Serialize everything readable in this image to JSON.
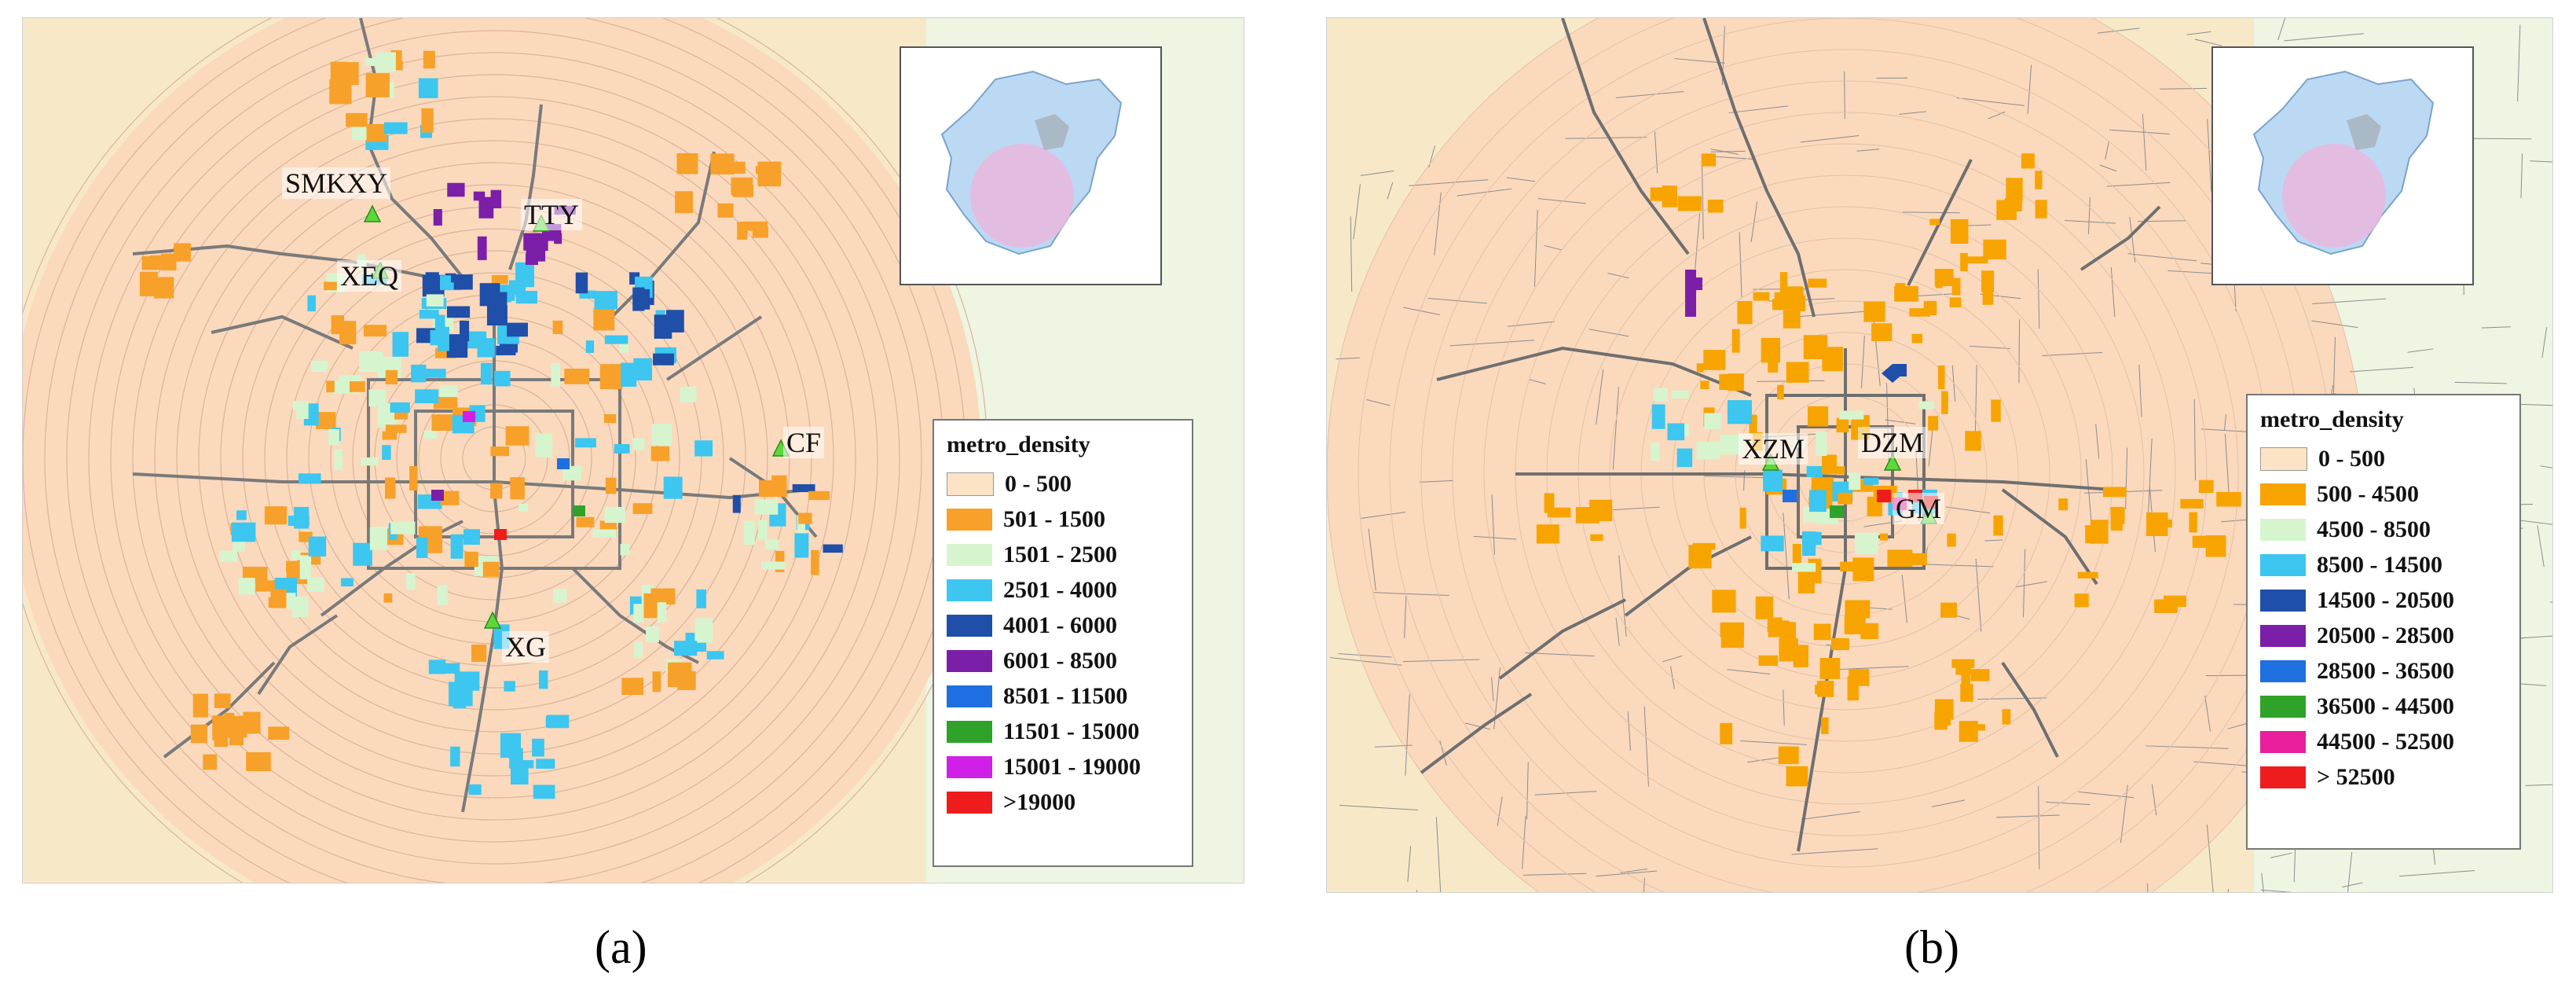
{
  "panel_a": {
    "caption": "(a)",
    "legend_title": "metro_density",
    "legend": [
      {
        "label": "0 - 500",
        "color": "#fde3c6"
      },
      {
        "label": "501 - 1500",
        "color": "#f7a12a"
      },
      {
        "label": "1501 - 2500",
        "color": "#d6f5cf"
      },
      {
        "label": "2501 - 4000",
        "color": "#3cc6f0"
      },
      {
        "label": "4001 - 6000",
        "color": "#1f4fa8"
      },
      {
        "label": "6001 - 8500",
        "color": "#7b1fa8"
      },
      {
        "label": "8501 - 11500",
        "color": "#1e6fe0"
      },
      {
        "label": "11501 - 15000",
        "color": "#2fa22a"
      },
      {
        "label": "15001 - 19000",
        "color": "#d020e8"
      },
      {
        "label": ">19000",
        "color": "#ee1c1c"
      }
    ],
    "stations": [
      "SMKXY",
      "TTY",
      "XEQ",
      "CF",
      "XG"
    ]
  },
  "panel_b": {
    "caption": "(b)",
    "legend_title": "metro_density",
    "legend": [
      {
        "label": "0 - 500",
        "color": "#fde3c6"
      },
      {
        "label": "500 - 4500",
        "color": "#f7a400"
      },
      {
        "label": "4500 - 8500",
        "color": "#d6f5cf"
      },
      {
        "label": "8500 - 14500",
        "color": "#3cc6f0"
      },
      {
        "label": "14500 - 20500",
        "color": "#1f4fa8"
      },
      {
        "label": "20500 - 28500",
        "color": "#7b1fa8"
      },
      {
        "label": "28500 - 36500",
        "color": "#1e6fe0"
      },
      {
        "label": "36500 - 44500",
        "color": "#2fa22a"
      },
      {
        "label": "44500 - 52500",
        "color": "#e81e9c"
      },
      {
        "label": "> 52500",
        "color": "#ee1c1c"
      }
    ],
    "stations": [
      "XZM",
      "DZM",
      "GM"
    ]
  }
}
